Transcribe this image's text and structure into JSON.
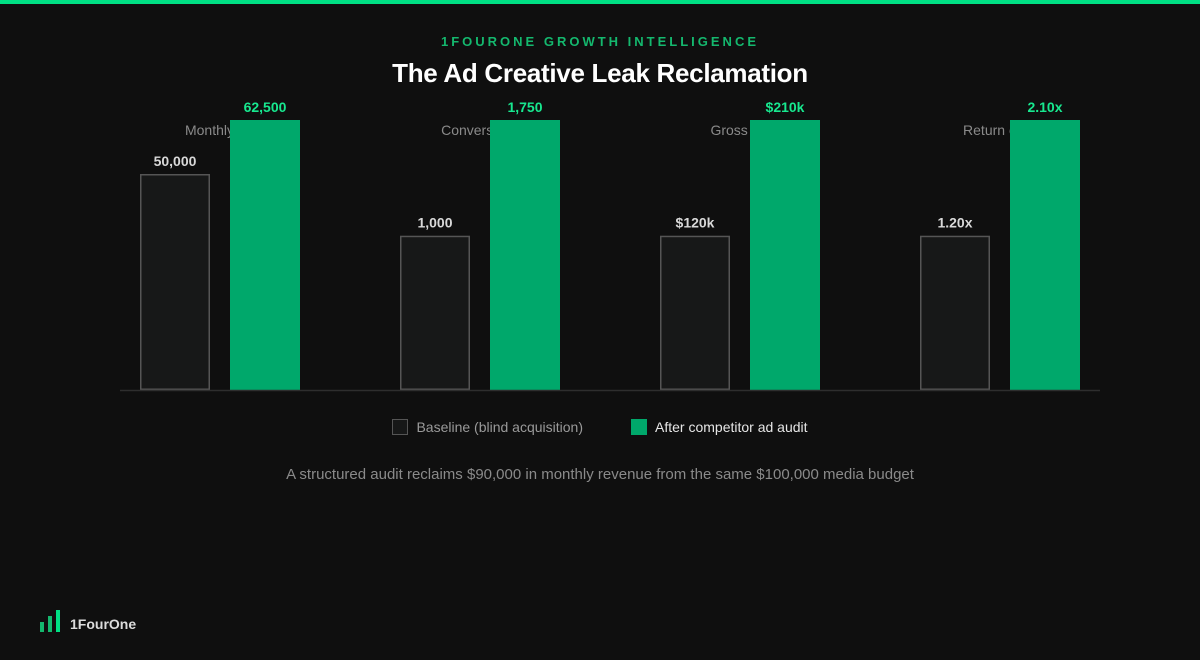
{
  "header": {
    "eyebrow": "1FOURONE GROWTH INTELLIGENCE",
    "title": "The Ad Creative Leak Reclamation"
  },
  "colors": {
    "accent": "#00e084",
    "after_bar": "#00a86b",
    "after_label": "#17e88f",
    "baseline_bar": "#171818",
    "baseline_stroke": "#555555",
    "baseline_label": "#d9d9d9"
  },
  "chart_data": {
    "type": "bar",
    "title": "The Ad Creative Leak Reclamation",
    "xlabel": "",
    "ylabel": "",
    "grid": false,
    "legend_position": "bottom-center",
    "groups": [
      {
        "name": "Monthly Sessions",
        "visible_name": "Monthly Se",
        "baseline": 50000,
        "after": 62500,
        "baseline_label": "50,000",
        "after_label": "62,500"
      },
      {
        "name": "Conversions",
        "visible_name": "Conversions",
        "baseline": 1000,
        "after": 1750,
        "baseline_label": "1,000",
        "after_label": "1,750"
      },
      {
        "name": "Gross Revenue",
        "visible_name": "Gross Re",
        "baseline": 120,
        "after": 210,
        "baseline_label": "$120k",
        "after_label": "$210k"
      },
      {
        "name": "Return on Ad Spend",
        "visible_name": "Return on A",
        "baseline": 1.2,
        "after": 2.1,
        "baseline_label": "1.20x",
        "after_label": "2.10x"
      }
    ],
    "series": [
      {
        "name": "Baseline (blind acquisition)",
        "key": "baseline"
      },
      {
        "name": "After competitor ad audit",
        "key": "after"
      }
    ]
  },
  "legend": {
    "baseline_label": "Baseline (blind acquisition)",
    "after_label": "After competitor ad audit"
  },
  "footnote": "A structured audit reclaims $90,000 in monthly revenue from the same $100,000 media budget",
  "brand": {
    "name": "1FourOne",
    "icon": "bar-chart-logo-icon"
  }
}
